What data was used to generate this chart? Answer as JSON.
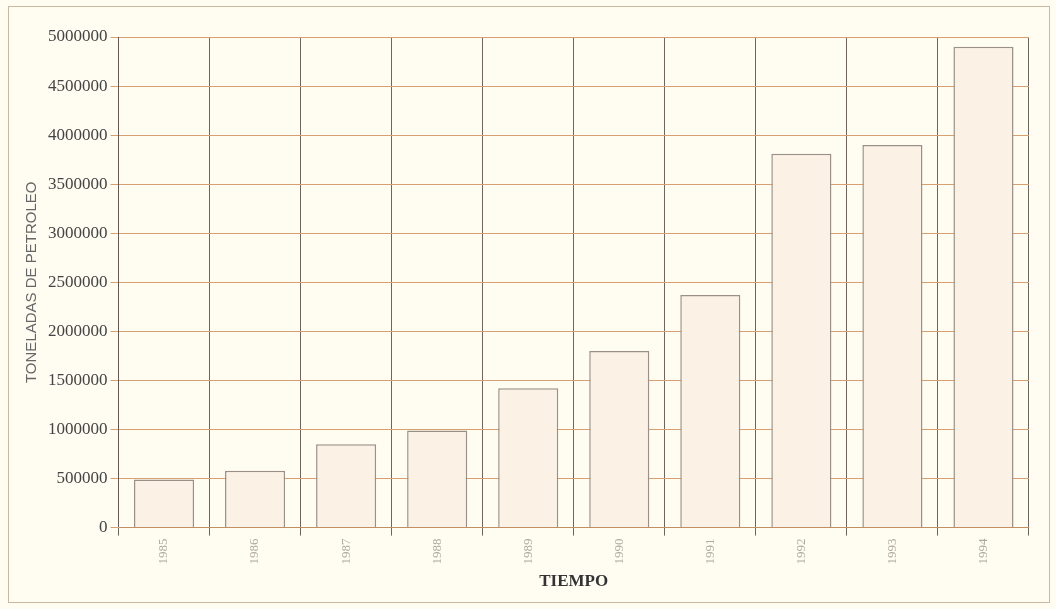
{
  "chart_data": {
    "type": "bar",
    "xlabel": "TIEMPO",
    "ylabel": "TONELADAS DE PETROLEO",
    "categories": [
      "1985",
      "1986",
      "1987",
      "1988",
      "1989",
      "1990",
      "1991",
      "1992",
      "1993",
      "1994"
    ],
    "values": [
      490000,
      580000,
      850000,
      990000,
      1420000,
      1800000,
      2370000,
      3810000,
      3900000,
      4900000
    ],
    "color": "#fbf1e4",
    "ylim": [
      0,
      5000000
    ],
    "yticks": [
      0,
      500000,
      1000000,
      1500000,
      2000000,
      2500000,
      3000000,
      3500000,
      4000000,
      4500000,
      5000000
    ],
    "grid": true
  }
}
